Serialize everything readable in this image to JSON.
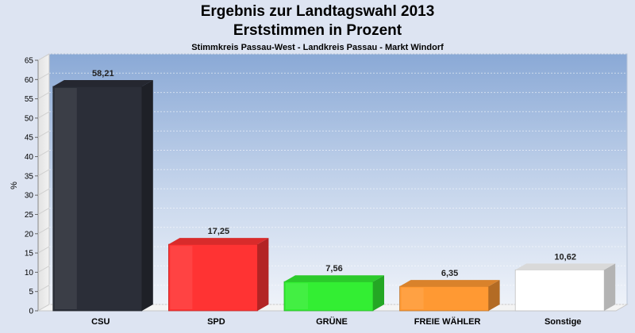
{
  "header": {
    "title_line1": "Ergebnis zur Landtagswahl 2013",
    "title_line2": "Erststimmen in Prozent",
    "subtitle": "Stimmkreis Passau-West - Landkreis Passau - Markt Windorf"
  },
  "chart_data": {
    "type": "bar",
    "title": "Ergebnis zur Landtagswahl 2013 Erststimmen in Prozent",
    "subtitle": "Stimmkreis Passau-West - Landkreis Passau - Markt Windorf",
    "xlabel": "",
    "ylabel": "%",
    "ylim": [
      0,
      65
    ],
    "yticks": [
      0,
      5,
      10,
      15,
      20,
      25,
      30,
      35,
      40,
      45,
      50,
      55,
      60,
      65
    ],
    "grid": true,
    "categories": [
      "CSU",
      "SPD",
      "GRÜNE",
      "FREIE WÄHLER",
      "Sonstige"
    ],
    "values": [
      58.21,
      17.25,
      7.56,
      6.35,
      10.62
    ],
    "value_labels": [
      "58,21",
      "17,25",
      "7,56",
      "6,35",
      "10,62"
    ],
    "colors": [
      "#2b2e38",
      "#ff3333",
      "#33ee33",
      "#ff9933",
      "#ffffff"
    ]
  }
}
